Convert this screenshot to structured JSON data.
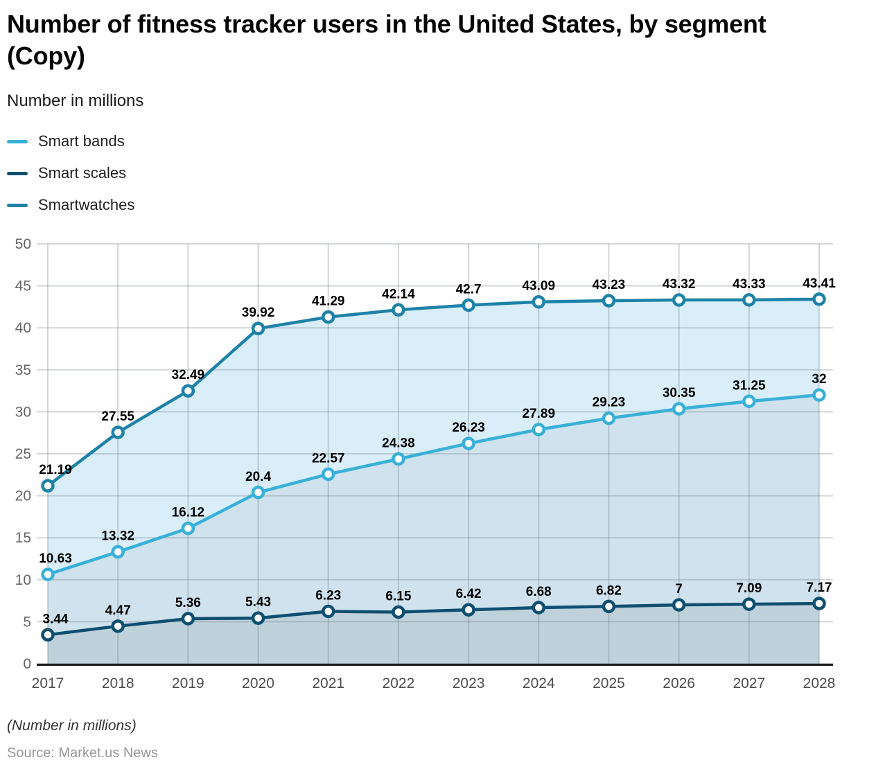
{
  "header": {
    "title": "Number of fitness tracker users in the United States, by segment (Copy)",
    "subtitle": "Number in millions"
  },
  "legend": [
    {
      "label": "Smart bands",
      "color": "#39b0d8"
    },
    {
      "label": "Smart scales",
      "color": "#0e4f70"
    },
    {
      "label": "Smartwatches",
      "color": "#1e82a8"
    }
  ],
  "chart_data": {
    "type": "area",
    "title": "Number of fitness tracker users in the United States, by segment (Copy)",
    "subtitle": "Number in millions",
    "x": [
      2017,
      2018,
      2019,
      2020,
      2021,
      2022,
      2023,
      2024,
      2025,
      2026,
      2027,
      2028
    ],
    "series": [
      {
        "name": "Smartwatches",
        "color": "#1e82a8",
        "values": [
          21.19,
          27.55,
          32.49,
          39.92,
          41.29,
          42.14,
          42.7,
          43.09,
          43.23,
          43.32,
          43.33,
          43.41
        ]
      },
      {
        "name": "Smart bands",
        "color": "#39b0d8",
        "values": [
          10.63,
          13.32,
          16.12,
          20.4,
          22.57,
          24.38,
          26.23,
          27.89,
          29.23,
          30.35,
          31.25,
          32
        ]
      },
      {
        "name": "Smart scales",
        "color": "#0e4f70",
        "values": [
          3.44,
          4.47,
          5.36,
          5.43,
          6.23,
          6.15,
          6.42,
          6.68,
          6.82,
          7,
          7.09,
          7.17
        ]
      }
    ],
    "ylim": [
      0,
      50
    ],
    "ytick_step": 5,
    "grid": true,
    "legend_position": "top-left",
    "band_fills": [
      "#d9eef9",
      "#cfe2ed",
      "#bfd2dc"
    ],
    "marker": "open-circle",
    "axis_color": "#1a1a1a",
    "grid_color": "rgba(110,118,125,0.30)",
    "tick_label_color_y": "#666666",
    "tick_label_color_x": "#4d4d4d",
    "data_label_color": "#000000"
  },
  "footer": {
    "note": "(Number in millions)",
    "source": "Source: Market.us News"
  }
}
